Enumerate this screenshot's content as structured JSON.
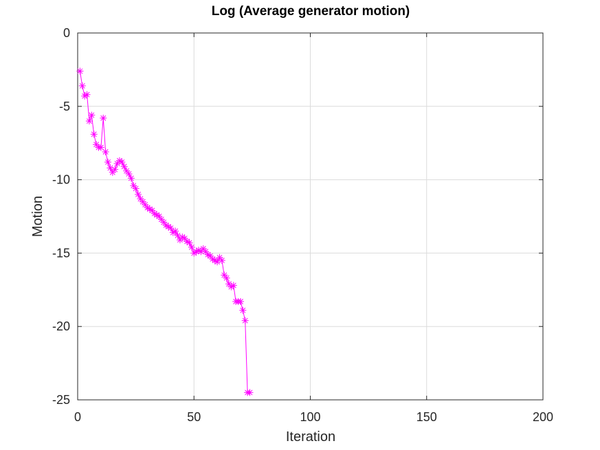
{
  "chart_data": {
    "type": "line",
    "title": "Log (Average generator motion)",
    "xlabel": "Iteration",
    "ylabel": "Motion",
    "xlim": [
      0,
      200
    ],
    "ylim": [
      -25,
      0
    ],
    "xticks": [
      0,
      50,
      100,
      150,
      200
    ],
    "yticks": [
      0,
      -5,
      -10,
      -15,
      -20,
      -25
    ],
    "grid": true,
    "marker": "asterisk",
    "series": [
      {
        "color": "#ff00ff",
        "x": [
          1,
          2,
          3,
          4,
          5,
          6,
          7,
          8,
          9,
          10,
          11,
          12,
          13,
          14,
          15,
          16,
          17,
          18,
          19,
          20,
          21,
          22,
          23,
          24,
          25,
          26,
          27,
          28,
          29,
          30,
          31,
          32,
          33,
          34,
          35,
          36,
          37,
          38,
          39,
          40,
          41,
          42,
          43,
          44,
          45,
          46,
          47,
          48,
          49,
          50,
          51,
          52,
          53,
          54,
          55,
          56,
          57,
          58,
          59,
          60,
          61,
          62,
          63,
          64,
          65,
          66,
          67,
          68,
          69,
          70,
          71,
          72,
          73,
          74
        ],
        "y": [
          -2.6,
          -3.6,
          -4.3,
          -4.2,
          -6.0,
          -5.6,
          -6.9,
          -7.6,
          -7.8,
          -7.8,
          -5.8,
          -8.1,
          -8.8,
          -9.2,
          -9.5,
          -9.3,
          -8.9,
          -8.7,
          -8.8,
          -9.1,
          -9.4,
          -9.6,
          -9.9,
          -10.4,
          -10.6,
          -11.0,
          -11.3,
          -11.5,
          -11.7,
          -11.9,
          -12.0,
          -12.1,
          -12.3,
          -12.4,
          -12.5,
          -12.7,
          -12.9,
          -13.1,
          -13.2,
          -13.3,
          -13.6,
          -13.5,
          -13.8,
          -14.1,
          -13.9,
          -14.0,
          -14.2,
          -14.3,
          -14.6,
          -15.0,
          -14.9,
          -14.8,
          -14.9,
          -14.7,
          -14.9,
          -15.1,
          -15.2,
          -15.4,
          -15.5,
          -15.6,
          -15.3,
          -15.5,
          -16.5,
          -16.7,
          -17.1,
          -17.3,
          -17.2,
          -18.3,
          -18.3,
          -18.3,
          -18.9,
          -19.6,
          -24.5,
          -24.5
        ]
      }
    ]
  }
}
